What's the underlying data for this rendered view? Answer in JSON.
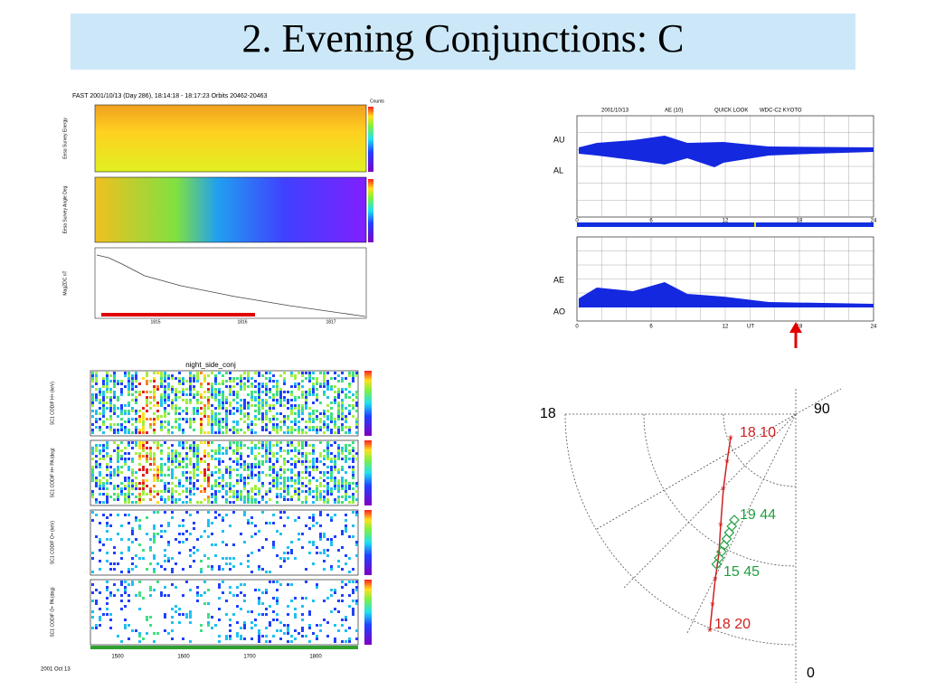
{
  "title": "2. Evening Conjunctions: C",
  "fast_panel": {
    "header": "FAST    2001/10/13 (Day 286), 18:14:18 - 18:17:23    Orbits 20462-20463",
    "y_labels": [
      "Eesa Survey Energy",
      "Eesa Survey Angle Deg",
      "MagZDC nT"
    ],
    "scale_title": "Counts",
    "time_ticks": [
      "1815",
      "1816",
      "1817"
    ]
  },
  "ae_panel": {
    "date": "2001/10/13",
    "index": "AE (10)",
    "mode": "QUICK LOOK",
    "source": "WDC-C2 KYOTO",
    "upper_labels": [
      "AU",
      "AL"
    ],
    "lower_labels": [
      "AE",
      "AO"
    ],
    "x_ticks": [
      "0",
      "6",
      "12",
      "18",
      "24"
    ],
    "x_label": "UT"
  },
  "conj_panel": {
    "title": "night_side_conj",
    "y_labels": [
      "SC1 CODIF H+ (keV)",
      "SC1 CODIF H+ PA (deg)",
      "SC1 CODIF O+ (keV)",
      "SC1 CODIF O+ PA (deg)"
    ],
    "time_ticks": [
      "1500",
      "1600",
      "1700",
      "1800"
    ],
    "date": "2001 Oct 13"
  },
  "polar_panel": {
    "mlt_left": "18",
    "lat_label": "90",
    "mlt_bottom": "0",
    "labels": [
      "18 10",
      "19 44",
      "15 45",
      "18 20"
    ]
  }
}
